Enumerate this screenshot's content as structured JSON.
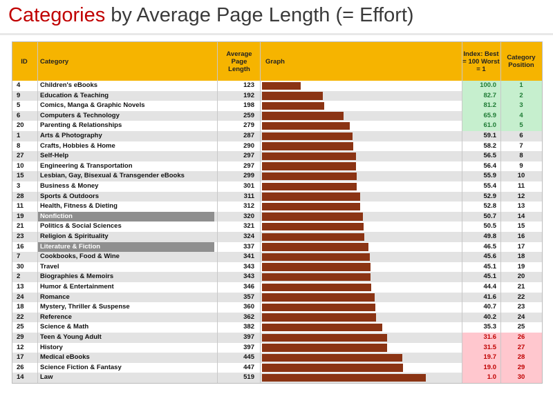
{
  "title": {
    "highlight": "Categories",
    "rest": " by Average Page Length (= Effort)"
  },
  "colors": {
    "header": "#f6b400",
    "bar": "#8b3414",
    "best": "#c6efce",
    "bestText": "#1e7b34",
    "worst": "#ffc7ce",
    "worstText": "#c00000",
    "highlightCategory": "#8f8f8f"
  },
  "headers": {
    "id": "ID",
    "category": "Category",
    "length": "Average Page Length",
    "graph": "Graph",
    "index": "Index: Best = 100 Worst = 1",
    "position": "Category Position"
  },
  "chart_data": {
    "type": "bar",
    "title": "Categories by Average Page Length (= Effort)",
    "rows": [
      {
        "id": "4",
        "category": "Children's eBooks",
        "length": 123,
        "index": "100.0",
        "position": "1",
        "tier": "best"
      },
      {
        "id": "9",
        "category": "Education & Teaching",
        "length": 192,
        "index": "82.7",
        "position": "2",
        "tier": "best"
      },
      {
        "id": "5",
        "category": "Comics, Manga & Graphic Novels",
        "length": 198,
        "index": "81.2",
        "position": "3",
        "tier": "best"
      },
      {
        "id": "6",
        "category": "Computers & Technology",
        "length": 259,
        "index": "65.9",
        "position": "4",
        "tier": "best"
      },
      {
        "id": "20",
        "category": "Parenting & Relationships",
        "length": 279,
        "index": "61.0",
        "position": "5",
        "tier": "best"
      },
      {
        "id": "1",
        "category": "Arts & Photography",
        "length": 287,
        "index": "59.1",
        "position": "6"
      },
      {
        "id": "8",
        "category": "Crafts, Hobbies & Home",
        "length": 290,
        "index": "58.2",
        "position": "7"
      },
      {
        "id": "27",
        "category": "Self-Help",
        "length": 297,
        "index": "56.5",
        "position": "8"
      },
      {
        "id": "10",
        "category": "Engineering & Transportation",
        "length": 297,
        "index": "56.4",
        "position": "9"
      },
      {
        "id": "15",
        "category": "Lesbian, Gay, Bisexual & Transgender eBooks",
        "length": 299,
        "index": "55.9",
        "position": "10"
      },
      {
        "id": "3",
        "category": "Business & Money",
        "length": 301,
        "index": "55.4",
        "position": "11"
      },
      {
        "id": "28",
        "category": "Sports & Outdoors",
        "length": 311,
        "index": "52.9",
        "position": "12"
      },
      {
        "id": "11",
        "category": "Health, Fitness & Dieting",
        "length": 312,
        "index": "52.8",
        "position": "13"
      },
      {
        "id": "19",
        "category": "Nonfiction",
        "length": 320,
        "index": "50.7",
        "position": "14",
        "highlight": true
      },
      {
        "id": "21",
        "category": "Politics & Social Sciences",
        "length": 321,
        "index": "50.5",
        "position": "15"
      },
      {
        "id": "23",
        "category": "Religion & Spirituality",
        "length": 324,
        "index": "49.8",
        "position": "16"
      },
      {
        "id": "16",
        "category": "Literature & Fiction",
        "length": 337,
        "index": "46.5",
        "position": "17",
        "highlight": true
      },
      {
        "id": "7",
        "category": "Cookbooks, Food & Wine",
        "length": 341,
        "index": "45.6",
        "position": "18"
      },
      {
        "id": "30",
        "category": "Travel",
        "length": 343,
        "index": "45.1",
        "position": "19"
      },
      {
        "id": "2",
        "category": "Biographies & Memoirs",
        "length": 343,
        "index": "45.1",
        "position": "20"
      },
      {
        "id": "13",
        "category": "Humor & Entertainment",
        "length": 346,
        "index": "44.4",
        "position": "21"
      },
      {
        "id": "24",
        "category": "Romance",
        "length": 357,
        "index": "41.6",
        "position": "22"
      },
      {
        "id": "18",
        "category": "Mystery, Thriller & Suspense",
        "length": 360,
        "index": "40.7",
        "position": "23"
      },
      {
        "id": "22",
        "category": "Reference",
        "length": 362,
        "index": "40.2",
        "position": "24"
      },
      {
        "id": "25",
        "category": "Science & Math",
        "length": 382,
        "index": "35.3",
        "position": "25"
      },
      {
        "id": "29",
        "category": "Teen & Young Adult",
        "length": 397,
        "index": "31.6",
        "position": "26",
        "tier": "worst"
      },
      {
        "id": "12",
        "category": "History",
        "length": 397,
        "index": "31.5",
        "position": "27",
        "tier": "worst"
      },
      {
        "id": "17",
        "category": "Medical eBooks",
        "length": 445,
        "index": "19.7",
        "position": "28",
        "tier": "worst"
      },
      {
        "id": "26",
        "category": "Science Fiction & Fantasy",
        "length": 447,
        "index": "19.0",
        "position": "29",
        "tier": "worst"
      },
      {
        "id": "14",
        "category": "Law",
        "length": 519,
        "index": "1.0",
        "position": "30",
        "tier": "worst"
      }
    ]
  }
}
